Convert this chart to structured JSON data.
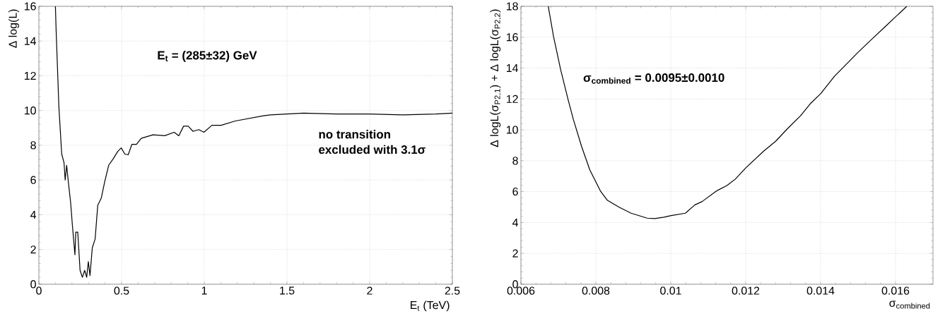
{
  "chart_data": [
    {
      "type": "line",
      "xlabel": "E$_{t}$ (TeV)",
      "ylabel": "Δ log(L)",
      "xlim": [
        0,
        2.5
      ],
      "ylim": [
        0,
        16
      ],
      "xticks": [
        0,
        0.5,
        1,
        1.5,
        2,
        2.5
      ],
      "yticks": [
        0,
        2,
        4,
        6,
        8,
        10,
        12,
        14,
        16
      ],
      "grid": true,
      "annotations": [
        "**E$_{t}$ = (285±32) GeV**",
        "**no transition**",
        "**excluded with 3.1σ**"
      ],
      "series": [
        {
          "color": "#000000",
          "x": [
            0.1,
            0.104,
            0.121,
            0.138,
            0.152,
            0.159,
            0.168,
            0.178,
            0.192,
            0.203,
            0.218,
            0.223,
            0.235,
            0.249,
            0.263,
            0.277,
            0.289,
            0.299,
            0.309,
            0.323,
            0.34,
            0.356,
            0.377,
            0.398,
            0.422,
            0.448,
            0.477,
            0.498,
            0.519,
            0.54,
            0.562,
            0.59,
            0.619,
            0.654,
            0.69,
            0.761,
            0.818,
            0.846,
            0.875,
            0.903,
            0.932,
            0.967,
            0.998,
            1.046,
            1.102,
            1.188,
            1.273,
            1.358,
            1.4,
            1.5,
            1.6,
            1.8,
            2.0,
            2.2,
            2.4,
            2.5
          ],
          "values": [
            16,
            14.7,
            10.2,
            7.5,
            7.0,
            6.0,
            6.85,
            5.9,
            4.7,
            3.35,
            1.7,
            3.0,
            3.0,
            0.8,
            0.4,
            0.8,
            0.4,
            1.3,
            0.5,
            2.1,
            2.6,
            4.55,
            4.95,
            5.9,
            6.85,
            7.2,
            7.65,
            7.85,
            7.5,
            7.45,
            8.05,
            8.05,
            8.4,
            8.5,
            8.6,
            8.55,
            8.75,
            8.55,
            9.1,
            9.1,
            8.8,
            8.9,
            8.75,
            9.15,
            9.15,
            9.4,
            9.55,
            9.7,
            9.75,
            9.8,
            9.85,
            9.8,
            9.8,
            9.75,
            9.8,
            9.85
          ]
        }
      ]
    },
    {
      "type": "line",
      "xlabel": "σ$_{combined}$",
      "ylabel": "Δ logL(σ$_{P2,1}$) + Δ logL(σ$_{P2,2}$)",
      "xlim": [
        0.006,
        0.017
      ],
      "ylim": [
        0,
        18
      ],
      "xticks": [
        0.006,
        0.008,
        0.01,
        0.012,
        0.014,
        0.016
      ],
      "yticks": [
        0,
        2,
        4,
        6,
        8,
        10,
        12,
        14,
        16,
        18
      ],
      "grid": true,
      "annotations": [
        "**σ$_{combined}$ = 0.0095±0.0010**"
      ],
      "series": [
        {
          "color": "#000000",
          "x": [
            0.00673,
            0.00687,
            0.00706,
            0.00726,
            0.0074,
            0.00762,
            0.00784,
            0.00813,
            0.00831,
            0.00863,
            0.00894,
            0.00937,
            0.00957,
            0.00982,
            0.01001,
            0.01039,
            0.01064,
            0.01084,
            0.01122,
            0.0115,
            0.01172,
            0.012,
            0.01248,
            0.0128,
            0.01311,
            0.01346,
            0.01374,
            0.014,
            0.01437,
            0.01469,
            0.015,
            0.01538,
            0.0157,
            0.01601,
            0.0163
          ],
          "values": [
            18,
            16.05,
            13.9,
            11.95,
            10.67,
            8.92,
            7.4,
            6.01,
            5.43,
            4.98,
            4.6,
            4.28,
            4.25,
            4.34,
            4.45,
            4.6,
            5.13,
            5.36,
            6.04,
            6.39,
            6.8,
            7.53,
            8.62,
            9.26,
            10.06,
            10.9,
            11.73,
            12.34,
            13.47,
            14.26,
            15.02,
            15.9,
            16.63,
            17.34,
            18
          ]
        }
      ]
    }
  ]
}
